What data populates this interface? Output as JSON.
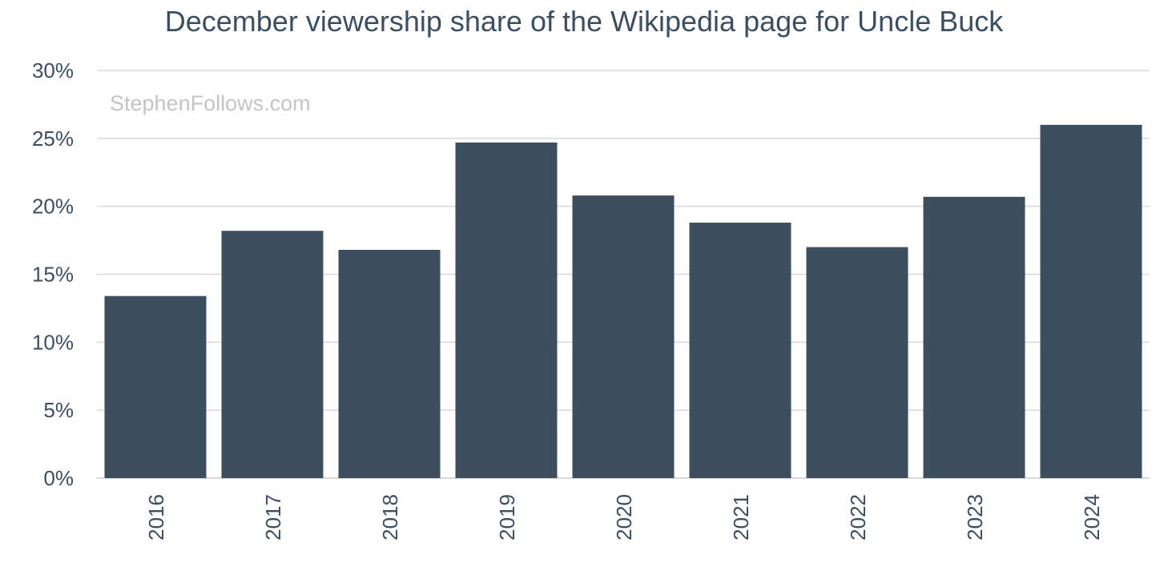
{
  "chart_data": {
    "type": "bar",
    "title": "December viewership share of the Wikipedia page for Uncle Buck",
    "watermark": "StephenFollows.com",
    "categories": [
      "2016",
      "2017",
      "2018",
      "2019",
      "2020",
      "2021",
      "2022",
      "2023",
      "2024"
    ],
    "values": [
      13.4,
      18.2,
      16.8,
      24.7,
      20.8,
      18.8,
      17.0,
      20.7,
      26.0
    ],
    "value_format": "percent",
    "ylim": [
      0,
      30
    ],
    "yticks": [
      0,
      5,
      10,
      15,
      20,
      25,
      30
    ],
    "ytick_labels": [
      "0%",
      "5%",
      "10%",
      "15%",
      "20%",
      "25%",
      "30%"
    ],
    "xlabel": "",
    "ylabel": "",
    "grid": true,
    "legend": "none",
    "colors": {
      "bar": "#3d4f5f",
      "grid": "#d9d9d9",
      "text": "#3d4f5f",
      "watermark": "#c4c4c4"
    }
  }
}
